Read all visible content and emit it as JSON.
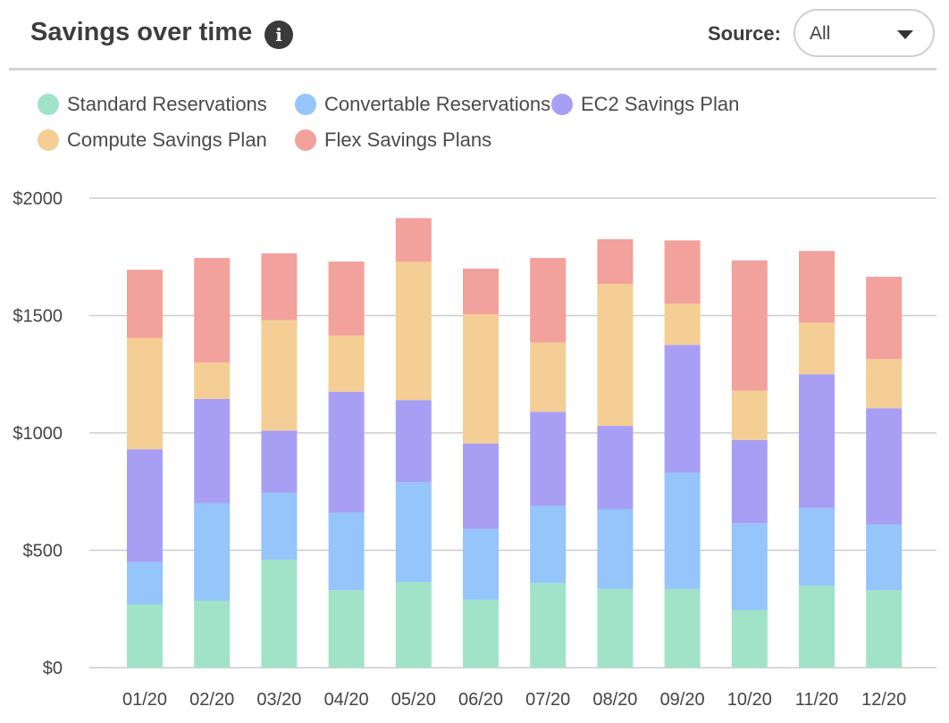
{
  "header": {
    "title": "Savings over time",
    "source_label": "Source:",
    "source_value": "All"
  },
  "icons": {
    "info": "info-icon",
    "dropdown": "chevron-down-icon"
  },
  "chart_data": {
    "type": "bar",
    "stacked": true,
    "categories": [
      "01/20",
      "02/20",
      "03/20",
      "04/20",
      "05/20",
      "06/20",
      "07/20",
      "08/20",
      "09/20",
      "10/20",
      "11/20",
      "12/20"
    ],
    "ylim": [
      0,
      2000
    ],
    "yticks": [
      0,
      500,
      1000,
      1500,
      2000
    ],
    "ytick_labels": [
      "$0",
      "$500",
      "$1000",
      "$1500",
      "$2000"
    ],
    "grid": true,
    "legend_position": "top-left",
    "series": [
      {
        "name": "Standard Reservations",
        "color": "#a0e3c8",
        "values": [
          270,
          285,
          460,
          330,
          365,
          290,
          360,
          335,
          335,
          245,
          350,
          330
        ]
      },
      {
        "name": "Convertable Reservations",
        "color": "#95c5fa",
        "values": [
          180,
          415,
          285,
          330,
          425,
          300,
          330,
          340,
          495,
          370,
          330,
          280
        ]
      },
      {
        "name": "EC2 Savings Plan",
        "color": "#a89ff5",
        "values": [
          480,
          445,
          265,
          515,
          350,
          365,
          400,
          355,
          545,
          355,
          570,
          495
        ]
      },
      {
        "name": "Compute Savings Plan",
        "color": "#f4ce95",
        "values": [
          475,
          155,
          470,
          240,
          590,
          550,
          295,
          605,
          175,
          210,
          220,
          210
        ]
      },
      {
        "name": "Flex Savings Plans",
        "color": "#f2a19c",
        "values": [
          290,
          445,
          285,
          315,
          185,
          195,
          360,
          190,
          270,
          555,
          305,
          350
        ]
      }
    ]
  }
}
